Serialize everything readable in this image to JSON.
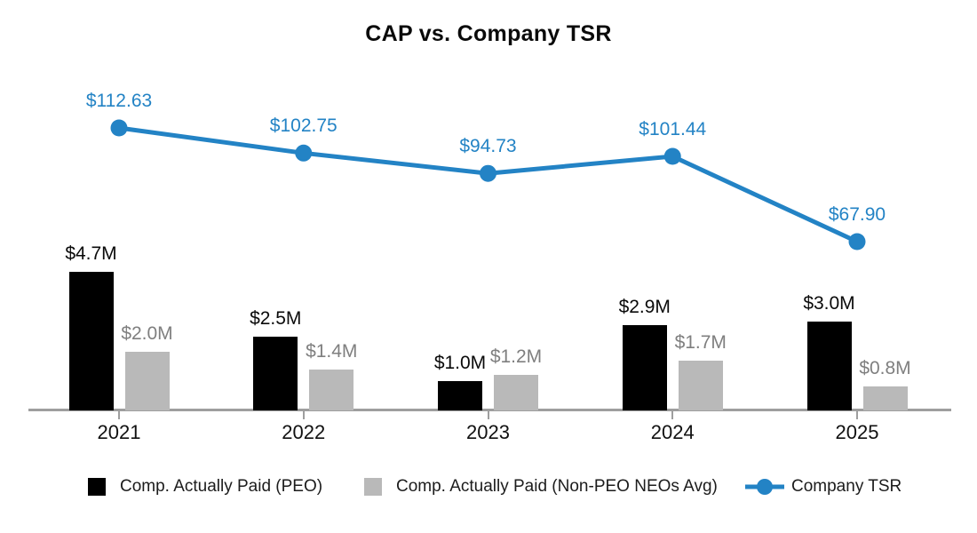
{
  "title": "CAP vs. Company TSR",
  "colors": {
    "peo_bar": "#000000",
    "non_peo_bar": "#b9b9b9",
    "tsr_line": "#2383c5",
    "gray_label": "#7f7f7f",
    "axis": "#9e9e9e",
    "text": "#0a0a0a"
  },
  "legend": [
    {
      "label": "Comp. Actually Paid (PEO)",
      "swatch": "square",
      "color": "#000000"
    },
    {
      "label": "Comp. Actually Paid (Non-PEO NEOs Avg)",
      "swatch": "square",
      "color": "#b9b9b9"
    },
    {
      "label": "Company TSR",
      "swatch": "line-dot",
      "color": "#2383c5"
    }
  ],
  "chart_data": {
    "type": "bar+line combo",
    "title": "CAP vs. Company TSR",
    "categories": [
      "2021",
      "2022",
      "2023",
      "2024",
      "2025"
    ],
    "series": [
      {
        "name": "Comp. Actually Paid (PEO)",
        "type": "bar",
        "values": [
          4.7,
          2.5,
          1.0,
          2.9,
          3.0
        ],
        "labels": [
          "$4.7M",
          "$2.5M",
          "$1.0M",
          "$2.9M",
          "$3.0M"
        ],
        "unit": "$M",
        "color": "#000000"
      },
      {
        "name": "Comp. Actually Paid (Non-PEO NEOs Avg)",
        "type": "bar",
        "values": [
          2.0,
          1.4,
          1.2,
          1.7,
          0.8
        ],
        "labels": [
          "$2.0M",
          "$1.4M",
          "$1.2M",
          "$1.7M",
          "$0.8M"
        ],
        "unit": "$M",
        "color": "#b9b9b9"
      },
      {
        "name": "Company TSR",
        "type": "line",
        "values": [
          112.63,
          102.75,
          94.73,
          101.44,
          67.9
        ],
        "labels": [
          "$112.63",
          "$102.75",
          "$94.73",
          "$101.44",
          "$67.90"
        ],
        "unit": "$",
        "color": "#2383c5"
      }
    ],
    "grid": false,
    "y_axis_visible": false,
    "legend_position": "bottom"
  }
}
